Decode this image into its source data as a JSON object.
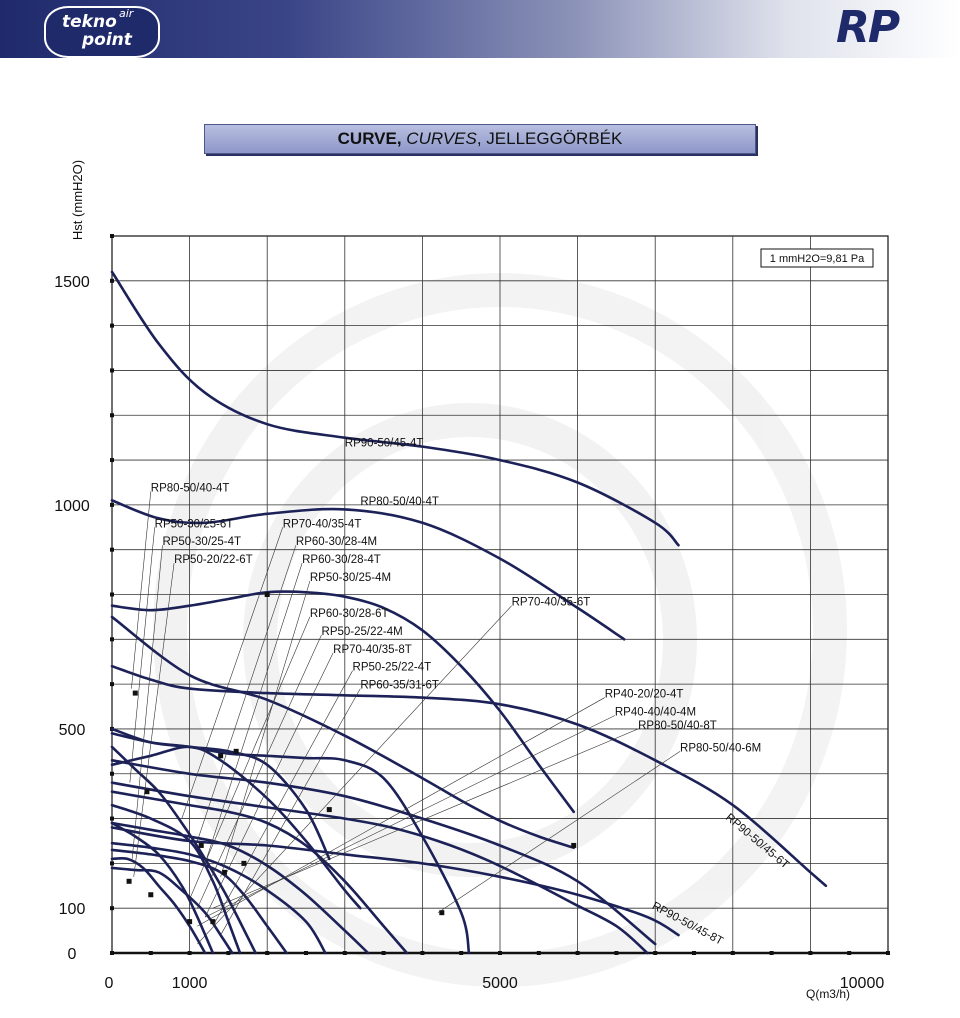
{
  "header": {
    "logo_main": "tekno",
    "logo_air": "air",
    "logo_point": "point",
    "brand": "RP"
  },
  "title": {
    "part1": "CURVE, ",
    "part2": "CURVES",
    "part3": ", JELLEGGÖRBÉK"
  },
  "chart_data": {
    "type": "line",
    "xlabel": "Q(m3/h)",
    "ylabel": "Hst (mmH2O)",
    "xlim": [
      0,
      10000
    ],
    "ylim": [
      0,
      1600
    ],
    "x_ticks": [
      {
        "value": 0,
        "label": "0"
      },
      {
        "value": 1000,
        "label": "1000"
      },
      {
        "value": 5000,
        "label": "5000"
      },
      {
        "value": 10000,
        "label": "10000"
      }
    ],
    "y_ticks": [
      {
        "value": 0,
        "label": "0"
      },
      {
        "value": 100,
        "label": "100"
      },
      {
        "value": 500,
        "label": "500"
      },
      {
        "value": 1000,
        "label": "1000"
      },
      {
        "value": 1500,
        "label": "1500"
      }
    ],
    "grid": true,
    "note": "1 mmH2O=9,81 Pa",
    "curves": [
      {
        "name": "RP90-50/45-4T",
        "x": [
          0,
          600,
          1200,
          2000,
          3000,
          4000,
          5000,
          6000,
          7000,
          7300
        ],
        "y": [
          1520,
          1360,
          1250,
          1180,
          1150,
          1130,
          1100,
          1050,
          960,
          910
        ]
      },
      {
        "name": "RP80-50/40-4T",
        "x": [
          0,
          600,
          1200,
          2000,
          3000,
          4000,
          5000,
          6000,
          6600
        ],
        "y": [
          1010,
          970,
          960,
          980,
          990,
          960,
          880,
          770,
          700
        ]
      },
      {
        "name": "RP70-40/35-6T",
        "x": [
          0,
          500,
          1000,
          2000,
          3000,
          4000,
          5000,
          6000,
          7000,
          8000,
          9000,
          9200
        ],
        "y": [
          640,
          610,
          590,
          580,
          575,
          570,
          555,
          510,
          430,
          330,
          180,
          150
        ]
      },
      {
        "name": "RP70-40/35-4T",
        "x": [
          0,
          500,
          1000,
          1500,
          2000,
          2500,
          3000,
          3500,
          4000,
          4500,
          5000,
          5500,
          5950
        ],
        "y": [
          775,
          765,
          775,
          790,
          805,
          805,
          795,
          770,
          720,
          640,
          540,
          420,
          315
        ]
      },
      {
        "name": "RP60-35/31-6T",
        "x": [
          0,
          1000,
          2000,
          3000,
          4000,
          4500,
          5000,
          5500,
          5950
        ],
        "y": [
          750,
          620,
          565,
          485,
          390,
          340,
          295,
          260,
          235
        ]
      },
      {
        "name": "RP90-50/45-8T",
        "x": [
          0,
          1000,
          2000,
          3000,
          4000,
          5000,
          6000,
          6900,
          7300
        ],
        "y": [
          280,
          250,
          240,
          220,
          200,
          170,
          130,
          80,
          40
        ]
      },
      {
        "name": "RP80-50/40-8T",
        "x": [
          0,
          1000,
          2000,
          3000,
          4000,
          5000,
          6000,
          7000
        ],
        "y": [
          430,
          400,
          380,
          350,
          300,
          240,
          160,
          20
        ]
      },
      {
        "name": "RP60-30/28-4T",
        "x": [
          0,
          500,
          1000,
          1500,
          2000,
          2500,
          3000,
          3500,
          4000,
          4500,
          4600
        ],
        "y": [
          490,
          470,
          460,
          445,
          440,
          435,
          430,
          390,
          260,
          90,
          0
        ]
      },
      {
        "name": "RP80-50/40-6M",
        "x": [
          0,
          1000,
          2000,
          3000,
          3600,
          4200,
          4800,
          5400,
          5950,
          6500,
          6900
        ],
        "y": [
          380,
          350,
          325,
          300,
          280,
          250,
          210,
          160,
          110,
          60,
          0
        ]
      },
      {
        "name": "RP60-30/28-6T",
        "x": [
          0,
          500,
          1000,
          1500,
          2000,
          2500,
          3000,
          3500,
          3800
        ],
        "y": [
          360,
          345,
          330,
          315,
          290,
          240,
          160,
          60,
          0
        ]
      },
      {
        "name": "RP50-25/22-4T",
        "x": [
          0,
          500,
          1000,
          1400,
          2000,
          2500,
          3000,
          3200
        ],
        "y": [
          420,
          440,
          460,
          430,
          345,
          250,
          140,
          100
        ]
      },
      {
        "name": "RP70-40/35-8T",
        "x": [
          0,
          500,
          1000,
          1500,
          2000,
          2500,
          2800
        ],
        "y": [
          500,
          470,
          460,
          450,
          420,
          320,
          210
        ]
      },
      {
        "name": "RP60-30/28-4M",
        "x": [
          0,
          500,
          1000,
          1500,
          2000,
          2500,
          3000,
          3300
        ],
        "y": [
          290,
          275,
          260,
          240,
          195,
          130,
          50,
          0
        ]
      },
      {
        "name": "RP50-30/25-4M",
        "x": [
          0,
          500,
          1000,
          1500,
          2000,
          2500,
          2750
        ],
        "y": [
          245,
          235,
          220,
          190,
          140,
          70,
          0
        ]
      },
      {
        "name": "RP50-25/22-4M",
        "x": [
          0,
          500,
          1000,
          1400,
          1700,
          2000,
          2250
        ],
        "y": [
          230,
          220,
          205,
          180,
          130,
          60,
          0
        ]
      },
      {
        "name": "RP40-20/20-4T",
        "x": [
          0,
          300,
          600,
          900,
          1200,
          1500,
          1850
        ],
        "y": [
          460,
          410,
          360,
          290,
          210,
          120,
          0
        ]
      },
      {
        "name": "RP40-40/40-4M",
        "x": [
          0,
          500,
          1000,
          1300,
          1500,
          1650
        ],
        "y": [
          330,
          300,
          250,
          160,
          70,
          0
        ]
      },
      {
        "name": "RP50-30/25-6T",
        "x": [
          0,
          300,
          600,
          900,
          1200,
          1400,
          1550
        ],
        "y": [
          190,
          185,
          180,
          140,
          90,
          40,
          0
        ]
      },
      {
        "name": "RP50-30/25-4T",
        "x": [
          0,
          300,
          600,
          900,
          1100,
          1300
        ],
        "y": [
          290,
          260,
          220,
          150,
          80,
          0
        ]
      },
      {
        "name": "RP50-20/22-6T",
        "x": [
          0,
          200,
          400,
          600,
          800,
          1000,
          1200
        ],
        "y": [
          210,
          210,
          190,
          150,
          110,
          60,
          0
        ]
      }
    ],
    "labels": [
      {
        "text": "RP90-50/45-4T",
        "x": 3000,
        "y": 1130
      },
      {
        "text": "RP80-50/40-4T",
        "x": 500,
        "y": 1030
      },
      {
        "text": "RP80-50/40-4T",
        "x": 3200,
        "y": 1000
      },
      {
        "text": "RP50-30/25-6T",
        "x": 550,
        "y": 950
      },
      {
        "text": "RP50-30/25-4T",
        "x": 650,
        "y": 910
      },
      {
        "text": "RP50-20/22-6T",
        "x": 800,
        "y": 870
      },
      {
        "text": "RP70-40/35-4T",
        "x": 2200,
        "y": 950
      },
      {
        "text": "RP60-30/28-4M",
        "x": 2370,
        "y": 910
      },
      {
        "text": "RP60-30/28-4T",
        "x": 2450,
        "y": 870
      },
      {
        "text": "RP50-30/25-4M",
        "x": 2550,
        "y": 830
      },
      {
        "text": "RP70-40/35-6T",
        "x": 5150,
        "y": 775
      },
      {
        "text": "RP60-30/28-6T",
        "x": 2550,
        "y": 750
      },
      {
        "text": "RP50-25/22-4M",
        "x": 2700,
        "y": 710
      },
      {
        "text": "RP70-40/35-8T",
        "x": 2850,
        "y": 670
      },
      {
        "text": "RP50-25/22-4T",
        "x": 3100,
        "y": 630
      },
      {
        "text": "RP60-35/31-6T",
        "x": 3200,
        "y": 590
      },
      {
        "text": "RP40-20/20-4T",
        "x": 6350,
        "y": 570
      },
      {
        "text": "RP40-40/40-4M",
        "x": 6480,
        "y": 530
      },
      {
        "text": "RP80-50/40-8T",
        "x": 6780,
        "y": 500
      },
      {
        "text": "RP80-50/40-6M",
        "x": 7320,
        "y": 450
      },
      {
        "text": "RP90-50/45-6T",
        "x": 7900,
        "y": 300,
        "rotate": 40
      },
      {
        "text": "RP90-50/45-8T",
        "x": 6950,
        "y": 100,
        "rotate": 28
      }
    ],
    "markers": [
      {
        "x": 300,
        "y": 580
      },
      {
        "x": 450,
        "y": 360
      },
      {
        "x": 220,
        "y": 160
      },
      {
        "x": 500,
        "y": 130
      },
      {
        "x": 1000,
        "y": 70
      },
      {
        "x": 1300,
        "y": 70
      },
      {
        "x": 1400,
        "y": 440
      },
      {
        "x": 1600,
        "y": 450
      },
      {
        "x": 2000,
        "y": 800
      },
      {
        "x": 2800,
        "y": 320
      },
      {
        "x": 4250,
        "y": 90
      },
      {
        "x": 5950,
        "y": 240
      },
      {
        "x": 1150,
        "y": 240
      },
      {
        "x": 1450,
        "y": 180
      },
      {
        "x": 1700,
        "y": 200
      }
    ]
  }
}
